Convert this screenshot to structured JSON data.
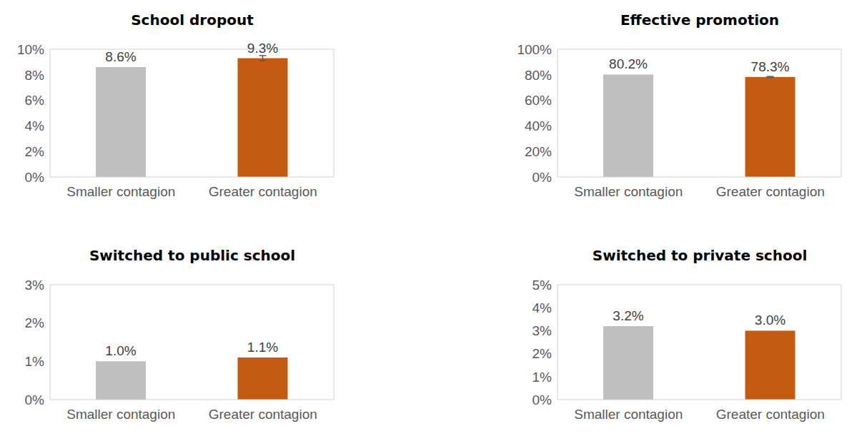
{
  "chart_data": [
    {
      "type": "bar",
      "title": "School dropout",
      "categories": [
        "Smaller contagion",
        "Greater contagion"
      ],
      "values": [
        8.6,
        9.3
      ],
      "value_labels": [
        "8.6%",
        "9.3%"
      ],
      "errors": [
        null,
        0.2
      ],
      "colors": [
        "#bfbfbf",
        "#c55a11"
      ],
      "ylim": [
        0,
        10
      ],
      "yticks": [
        {
          "value": 0,
          "label": "0%"
        },
        {
          "value": 2,
          "label": "2%"
        },
        {
          "value": 4,
          "label": "4%"
        },
        {
          "value": 6,
          "label": "6%"
        },
        {
          "value": 8,
          "label": "8%"
        },
        {
          "value": 10,
          "label": "10%"
        }
      ],
      "data_labels": true,
      "grid": false
    },
    {
      "type": "bar",
      "title": "Effective promotion",
      "categories": [
        "Smaller contagion",
        "Greater contagion"
      ],
      "values": [
        80.2,
        78.3
      ],
      "value_labels": [
        "80.2%",
        "78.3%"
      ],
      "errors": [
        null,
        0.4
      ],
      "colors": [
        "#bfbfbf",
        "#c55a11"
      ],
      "ylim": [
        0,
        100
      ],
      "yticks": [
        {
          "value": 0,
          "label": "0%"
        },
        {
          "value": 20,
          "label": "20%"
        },
        {
          "value": 40,
          "label": "40%"
        },
        {
          "value": 60,
          "label": "60%"
        },
        {
          "value": 80,
          "label": "80%"
        },
        {
          "value": 100,
          "label": "100%"
        }
      ],
      "data_labels": true,
      "grid": false
    },
    {
      "type": "bar",
      "title": "Switched to public school",
      "categories": [
        "Smaller contagion",
        "Greater contagion"
      ],
      "values": [
        1.0,
        1.1
      ],
      "value_labels": [
        "1.0%",
        "1.1%"
      ],
      "colors": [
        "#bfbfbf",
        "#c55a11"
      ],
      "ylim": [
        0,
        3
      ],
      "yticks": [
        {
          "value": 0,
          "label": "0%"
        },
        {
          "value": 1,
          "label": "1%"
        },
        {
          "value": 2,
          "label": "2%"
        },
        {
          "value": 3,
          "label": "3%"
        }
      ],
      "data_labels": true,
      "grid": false
    },
    {
      "type": "bar",
      "title": "Switched to private school",
      "categories": [
        "Smaller contagion",
        "Greater contagion"
      ],
      "values": [
        3.2,
        3.0
      ],
      "value_labels": [
        "3.2%",
        "3.0%"
      ],
      "colors": [
        "#bfbfbf",
        "#c55a11"
      ],
      "ylim": [
        0,
        5
      ],
      "yticks": [
        {
          "value": 0,
          "label": "0%"
        },
        {
          "value": 1,
          "label": "1%"
        },
        {
          "value": 2,
          "label": "2%"
        },
        {
          "value": 3,
          "label": "3%"
        },
        {
          "value": 4,
          "label": "4%"
        },
        {
          "value": 5,
          "label": "5%"
        }
      ],
      "data_labels": true,
      "grid": false
    }
  ]
}
